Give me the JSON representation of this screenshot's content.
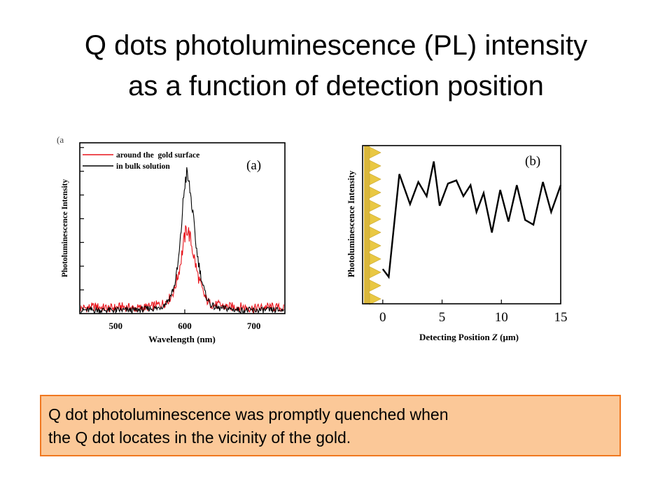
{
  "slide": {
    "title_lines": [
      "Q dots photoluminescence (PL) intensity",
      "as a function of detection position"
    ],
    "caption_lines": [
      "Q dot photoluminescence was promptly quenched when",
      "the Q dot locates in the vicinity of the gold."
    ],
    "caption_bg": "#fbc898",
    "caption_border": "#f07820"
  },
  "chart_data": [
    {
      "type": "line",
      "corner_label": "(a",
      "panel_label": "(a)",
      "xlabel": "Wavelength (nm)",
      "ylabel": "Photoluminescence Intensity",
      "xlim": [
        448,
        745
      ],
      "ylim": [
        0,
        1.0
      ],
      "xticks": [
        500,
        600,
        700
      ],
      "legend_position": "top-left",
      "series": [
        {
          "name": "around the  gold surface",
          "color": "#e8131b",
          "x": [
            450,
            470,
            490,
            510,
            530,
            550,
            560,
            570,
            578,
            585,
            590,
            594,
            597,
            600,
            603,
            606,
            609,
            612,
            615,
            618,
            622,
            626,
            630,
            636,
            642,
            650,
            660,
            680,
            700,
            720,
            745
          ],
          "y": [
            0.03,
            0.04,
            0.03,
            0.04,
            0.03,
            0.04,
            0.05,
            0.06,
            0.09,
            0.14,
            0.22,
            0.3,
            0.38,
            0.45,
            0.5,
            0.47,
            0.42,
            0.36,
            0.3,
            0.24,
            0.18,
            0.13,
            0.09,
            0.06,
            0.05,
            0.05,
            0.04,
            0.04,
            0.03,
            0.04,
            0.03
          ]
        },
        {
          "name": "in bulk solution",
          "color": "#000000",
          "x": [
            450,
            470,
            490,
            510,
            530,
            550,
            560,
            570,
            578,
            585,
            590,
            594,
            597,
            600,
            603,
            606,
            609,
            612,
            615,
            618,
            622,
            626,
            630,
            636,
            642,
            650,
            660,
            680,
            700,
            720,
            745
          ],
          "y": [
            0.02,
            0.02,
            0.02,
            0.02,
            0.02,
            0.03,
            0.03,
            0.05,
            0.09,
            0.16,
            0.28,
            0.44,
            0.62,
            0.76,
            0.82,
            0.76,
            0.68,
            0.57,
            0.45,
            0.35,
            0.25,
            0.17,
            0.11,
            0.06,
            0.04,
            0.03,
            0.03,
            0.02,
            0.02,
            0.02,
            0.02
          ]
        }
      ]
    },
    {
      "type": "line",
      "panel_label": "(b)",
      "xlabel": "Detecting Position Z (μm)",
      "ylabel": "Photoluminescence Intensity",
      "xlim": [
        -1.7,
        15
      ],
      "ylim": [
        0,
        1.0
      ],
      "xticks": [
        0,
        5,
        10,
        15
      ],
      "series": [
        {
          "color": "#000000",
          "x": [
            0,
            0.5,
            1.4,
            2.3,
            3.0,
            3.7,
            4.3,
            4.8,
            5.5,
            6.2,
            6.8,
            7.4,
            7.9,
            8.5,
            9.2,
            9.9,
            10.6,
            11.3,
            12.0,
            12.7,
            13.5,
            14.2,
            15.0
          ],
          "y": [
            0.22,
            0.17,
            0.82,
            0.63,
            0.77,
            0.68,
            0.9,
            0.62,
            0.76,
            0.78,
            0.68,
            0.75,
            0.58,
            0.7,
            0.45,
            0.72,
            0.52,
            0.75,
            0.53,
            0.5,
            0.77,
            0.58,
            0.75
          ]
        }
      ]
    }
  ]
}
